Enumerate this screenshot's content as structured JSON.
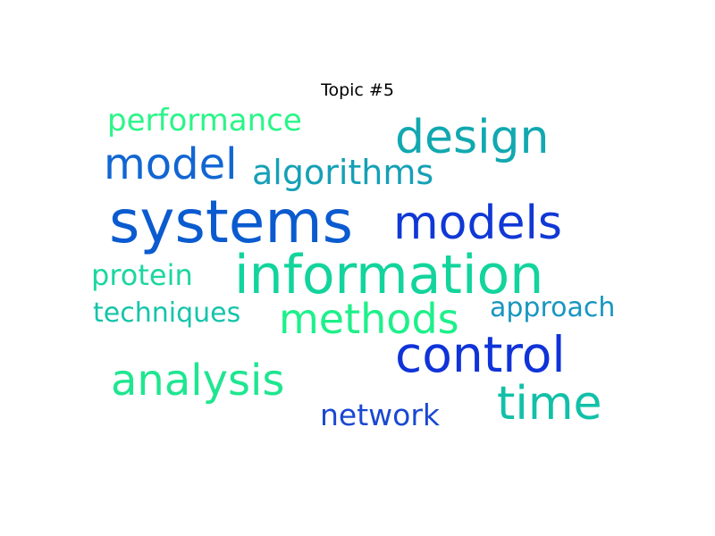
{
  "figure": {
    "title": "Topic #5"
  },
  "words": [
    {
      "id": "systems",
      "text": "systems",
      "color": "#0b5bd0"
    },
    {
      "id": "information",
      "text": "information",
      "color": "#12d49c"
    },
    {
      "id": "design",
      "text": "design",
      "color": "#12a8b0"
    },
    {
      "id": "models",
      "text": "models",
      "color": "#1038d6"
    },
    {
      "id": "model",
      "text": "model",
      "color": "#1266d3"
    },
    {
      "id": "algorithms",
      "text": "algorithms",
      "color": "#15a0b6"
    },
    {
      "id": "control",
      "text": "control",
      "color": "#0f33d8"
    },
    {
      "id": "methods",
      "text": "methods",
      "color": "#1ef08a"
    },
    {
      "id": "analysis",
      "text": "analysis",
      "color": "#1ee690"
    },
    {
      "id": "time",
      "text": "time",
      "color": "#12c0a8"
    },
    {
      "id": "performance",
      "text": "performance",
      "color": "#2af588"
    },
    {
      "id": "protein",
      "text": "protein",
      "color": "#1cd6a0"
    },
    {
      "id": "techniques",
      "text": "techniques",
      "color": "#16c4aa"
    },
    {
      "id": "approach",
      "text": "approach",
      "color": "#1896c0"
    },
    {
      "id": "network",
      "text": "network",
      "color": "#1a48d2"
    }
  ]
}
